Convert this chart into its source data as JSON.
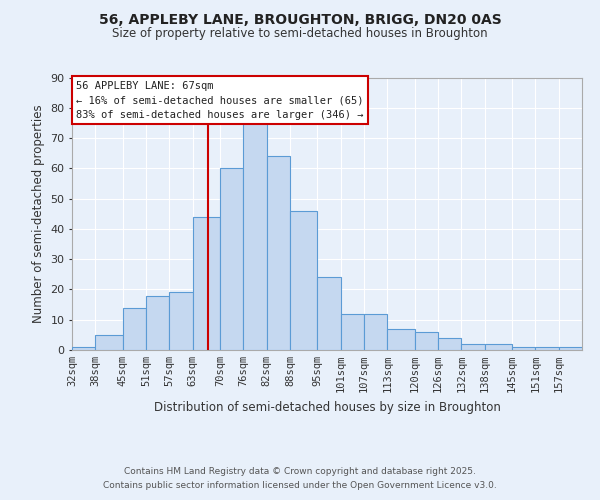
{
  "title": "56, APPLEBY LANE, BROUGHTON, BRIGG, DN20 0AS",
  "subtitle": "Size of property relative to semi-detached houses in Broughton",
  "xlabel": "Distribution of semi-detached houses by size in Broughton",
  "ylabel": "Number of semi-detached properties",
  "bin_labels": [
    "32sqm",
    "38sqm",
    "45sqm",
    "51sqm",
    "57sqm",
    "63sqm",
    "70sqm",
    "76sqm",
    "82sqm",
    "88sqm",
    "95sqm",
    "101sqm",
    "107sqm",
    "113sqm",
    "120sqm",
    "126sqm",
    "132sqm",
    "138sqm",
    "145sqm",
    "151sqm",
    "157sqm"
  ],
  "bin_edges": [
    32,
    38,
    45,
    51,
    57,
    63,
    70,
    76,
    82,
    88,
    95,
    101,
    107,
    113,
    120,
    126,
    132,
    138,
    145,
    151,
    157,
    163
  ],
  "counts": [
    1,
    5,
    14,
    18,
    19,
    44,
    60,
    75,
    64,
    46,
    24,
    12,
    12,
    7,
    6,
    4,
    2,
    2,
    1,
    1,
    1
  ],
  "bar_color": "#c5d8f0",
  "bar_edge_color": "#5b9bd5",
  "property_value": 67,
  "vline_color": "#cc0000",
  "vline_label": "56 APPLEBY LANE: 67sqm",
  "smaller_pct": 16,
  "smaller_count": 65,
  "larger_pct": 83,
  "larger_count": 346,
  "ylim": [
    0,
    90
  ],
  "yticks": [
    0,
    10,
    20,
    30,
    40,
    50,
    60,
    70,
    80,
    90
  ],
  "background_color": "#e8f0fa",
  "grid_color": "#ffffff",
  "footer1": "Contains HM Land Registry data © Crown copyright and database right 2025.",
  "footer2": "Contains public sector information licensed under the Open Government Licence v3.0."
}
